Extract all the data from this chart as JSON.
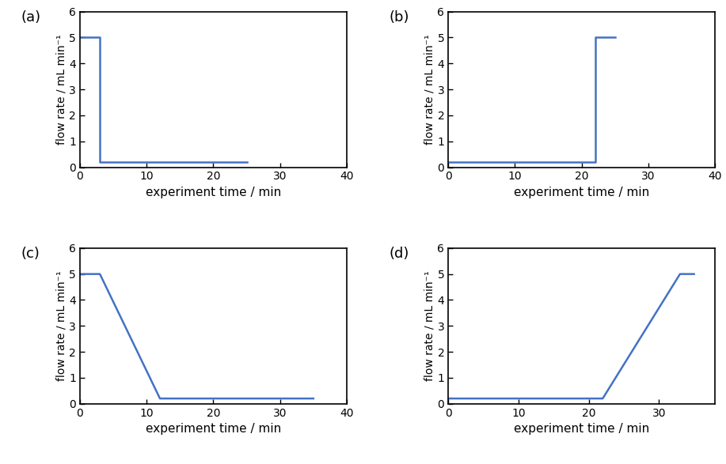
{
  "line_color": "#4472C4",
  "line_width": 1.8,
  "ylabel": "flow rate / mL min⁻¹",
  "xlabel": "experiment time / min",
  "ylim": [
    0,
    6
  ],
  "yticks": [
    0,
    1,
    2,
    3,
    4,
    5,
    6
  ],
  "xlim": [
    0,
    40
  ],
  "xticks": [
    0,
    10,
    20,
    30,
    40
  ],
  "panels": [
    {
      "label": "(a)",
      "x": [
        0,
        3,
        3,
        25
      ],
      "y": [
        5.0,
        5.0,
        0.2,
        0.2
      ],
      "xlim": [
        0,
        40
      ],
      "xticks": [
        0,
        10,
        20,
        30,
        40
      ]
    },
    {
      "label": "(b)",
      "x": [
        0,
        22,
        22,
        25
      ],
      "y": [
        0.2,
        0.2,
        5.0,
        5.0
      ],
      "xlim": [
        0,
        40
      ],
      "xticks": [
        0,
        10,
        20,
        30,
        40
      ]
    },
    {
      "label": "(c)",
      "x": [
        0,
        3,
        12,
        35
      ],
      "y": [
        5.0,
        5.0,
        0.2,
        0.2
      ],
      "xlim": [
        0,
        40
      ],
      "xticks": [
        0,
        10,
        20,
        30,
        40
      ]
    },
    {
      "label": "(d)",
      "x": [
        0,
        22,
        33,
        35
      ],
      "y": [
        0.2,
        0.2,
        5.0,
        5.0
      ],
      "xlim": [
        0,
        38
      ],
      "xticks": [
        0,
        10,
        20,
        30
      ]
    }
  ]
}
